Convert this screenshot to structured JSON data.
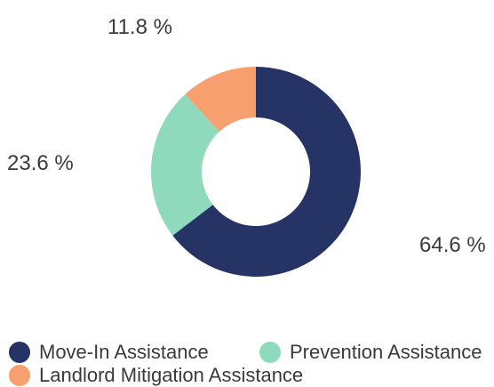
{
  "chart_data": {
    "type": "pie",
    "donut": true,
    "slices": [
      {
        "label": "Move-In Assistance",
        "value": 64.6,
        "display": "64.6 %",
        "color": "#253465"
      },
      {
        "label": "Prevention Assistance",
        "value": 23.6,
        "display": "23.6 %",
        "color": "#8fdabd"
      },
      {
        "label": "Landlord Mitigation Assistance",
        "value": 11.8,
        "display": "11.8 %",
        "color": "#f79f6e"
      }
    ],
    "legend_position": "bottom-left"
  }
}
